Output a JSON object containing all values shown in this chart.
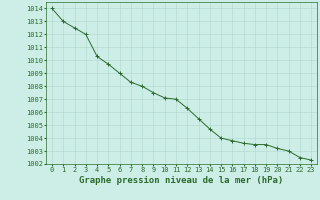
{
  "x": [
    0,
    1,
    2,
    3,
    4,
    5,
    6,
    7,
    8,
    9,
    10,
    11,
    12,
    13,
    14,
    15,
    16,
    17,
    18,
    19,
    20,
    21,
    22,
    23
  ],
  "y": [
    1014.0,
    1013.0,
    1012.5,
    1012.0,
    1010.3,
    1009.7,
    1009.0,
    1008.3,
    1008.0,
    1007.5,
    1007.1,
    1007.0,
    1006.3,
    1005.5,
    1004.7,
    1004.0,
    1003.8,
    1003.6,
    1003.5,
    1003.5,
    1003.2,
    1003.0,
    1002.5,
    1002.3
  ],
  "line_color": "#2d6a2d",
  "marker": "+",
  "marker_color": "#2d6a2d",
  "bg_color": "#cceee6",
  "grid_color": "#b0d8cc",
  "text_color": "#2d6a2d",
  "xlabel": "Graphe pression niveau de la mer (hPa)",
  "ylim": [
    1002,
    1014.5
  ],
  "xlim": [
    -0.5,
    23.5
  ],
  "yticks": [
    1002,
    1003,
    1004,
    1005,
    1006,
    1007,
    1008,
    1009,
    1010,
    1011,
    1012,
    1013,
    1014
  ],
  "xticks": [
    0,
    1,
    2,
    3,
    4,
    5,
    6,
    7,
    8,
    9,
    10,
    11,
    12,
    13,
    14,
    15,
    16,
    17,
    18,
    19,
    20,
    21,
    22,
    23
  ],
  "xlabel_fontsize": 6.5,
  "tick_fontsize": 5,
  "xlabel_fontweight": "bold"
}
